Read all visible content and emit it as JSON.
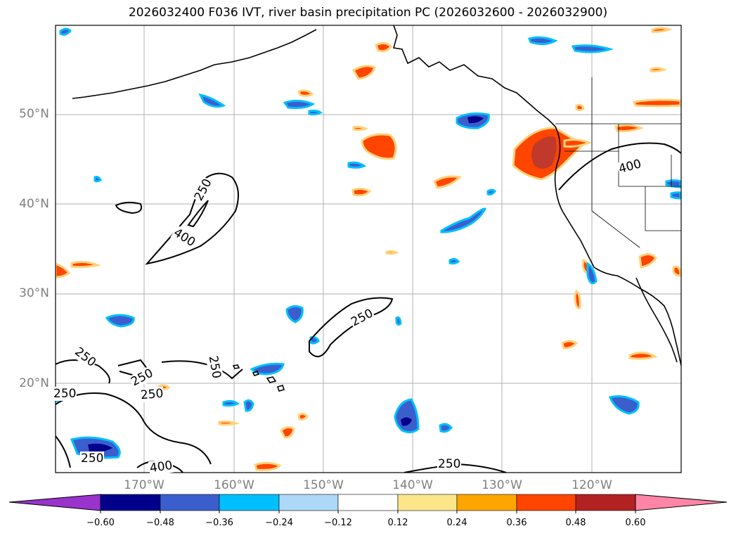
{
  "title": "2026032400 F036 IVT, river basin precipitation PC (2026032600 - 2026032900)",
  "axes": {
    "lat_labels": [
      "50°N",
      "40°N",
      "30°N",
      "20°N"
    ],
    "lon_labels": [
      "170°W",
      "160°W",
      "150°W",
      "140°W",
      "130°W",
      "120°W"
    ]
  },
  "contour_labels": [
    "250",
    "400",
    "250",
    "400",
    "250",
    "250",
    "250",
    "250",
    "250",
    "250",
    "400",
    "250"
  ],
  "colorbar": {
    "ticks": [
      "−0.60",
      "−0.48",
      "−0.36",
      "−0.24",
      "−0.12",
      "0.12",
      "0.24",
      "0.36",
      "0.48",
      "0.60"
    ],
    "colors": [
      "#9933cc",
      "#00008b",
      "#3a5fcd",
      "#00bfff",
      "#add8f7",
      "#ffffff",
      "#fde68a",
      "#ffa500",
      "#ff4500",
      "#b22222",
      "#ff85a7"
    ]
  }
}
